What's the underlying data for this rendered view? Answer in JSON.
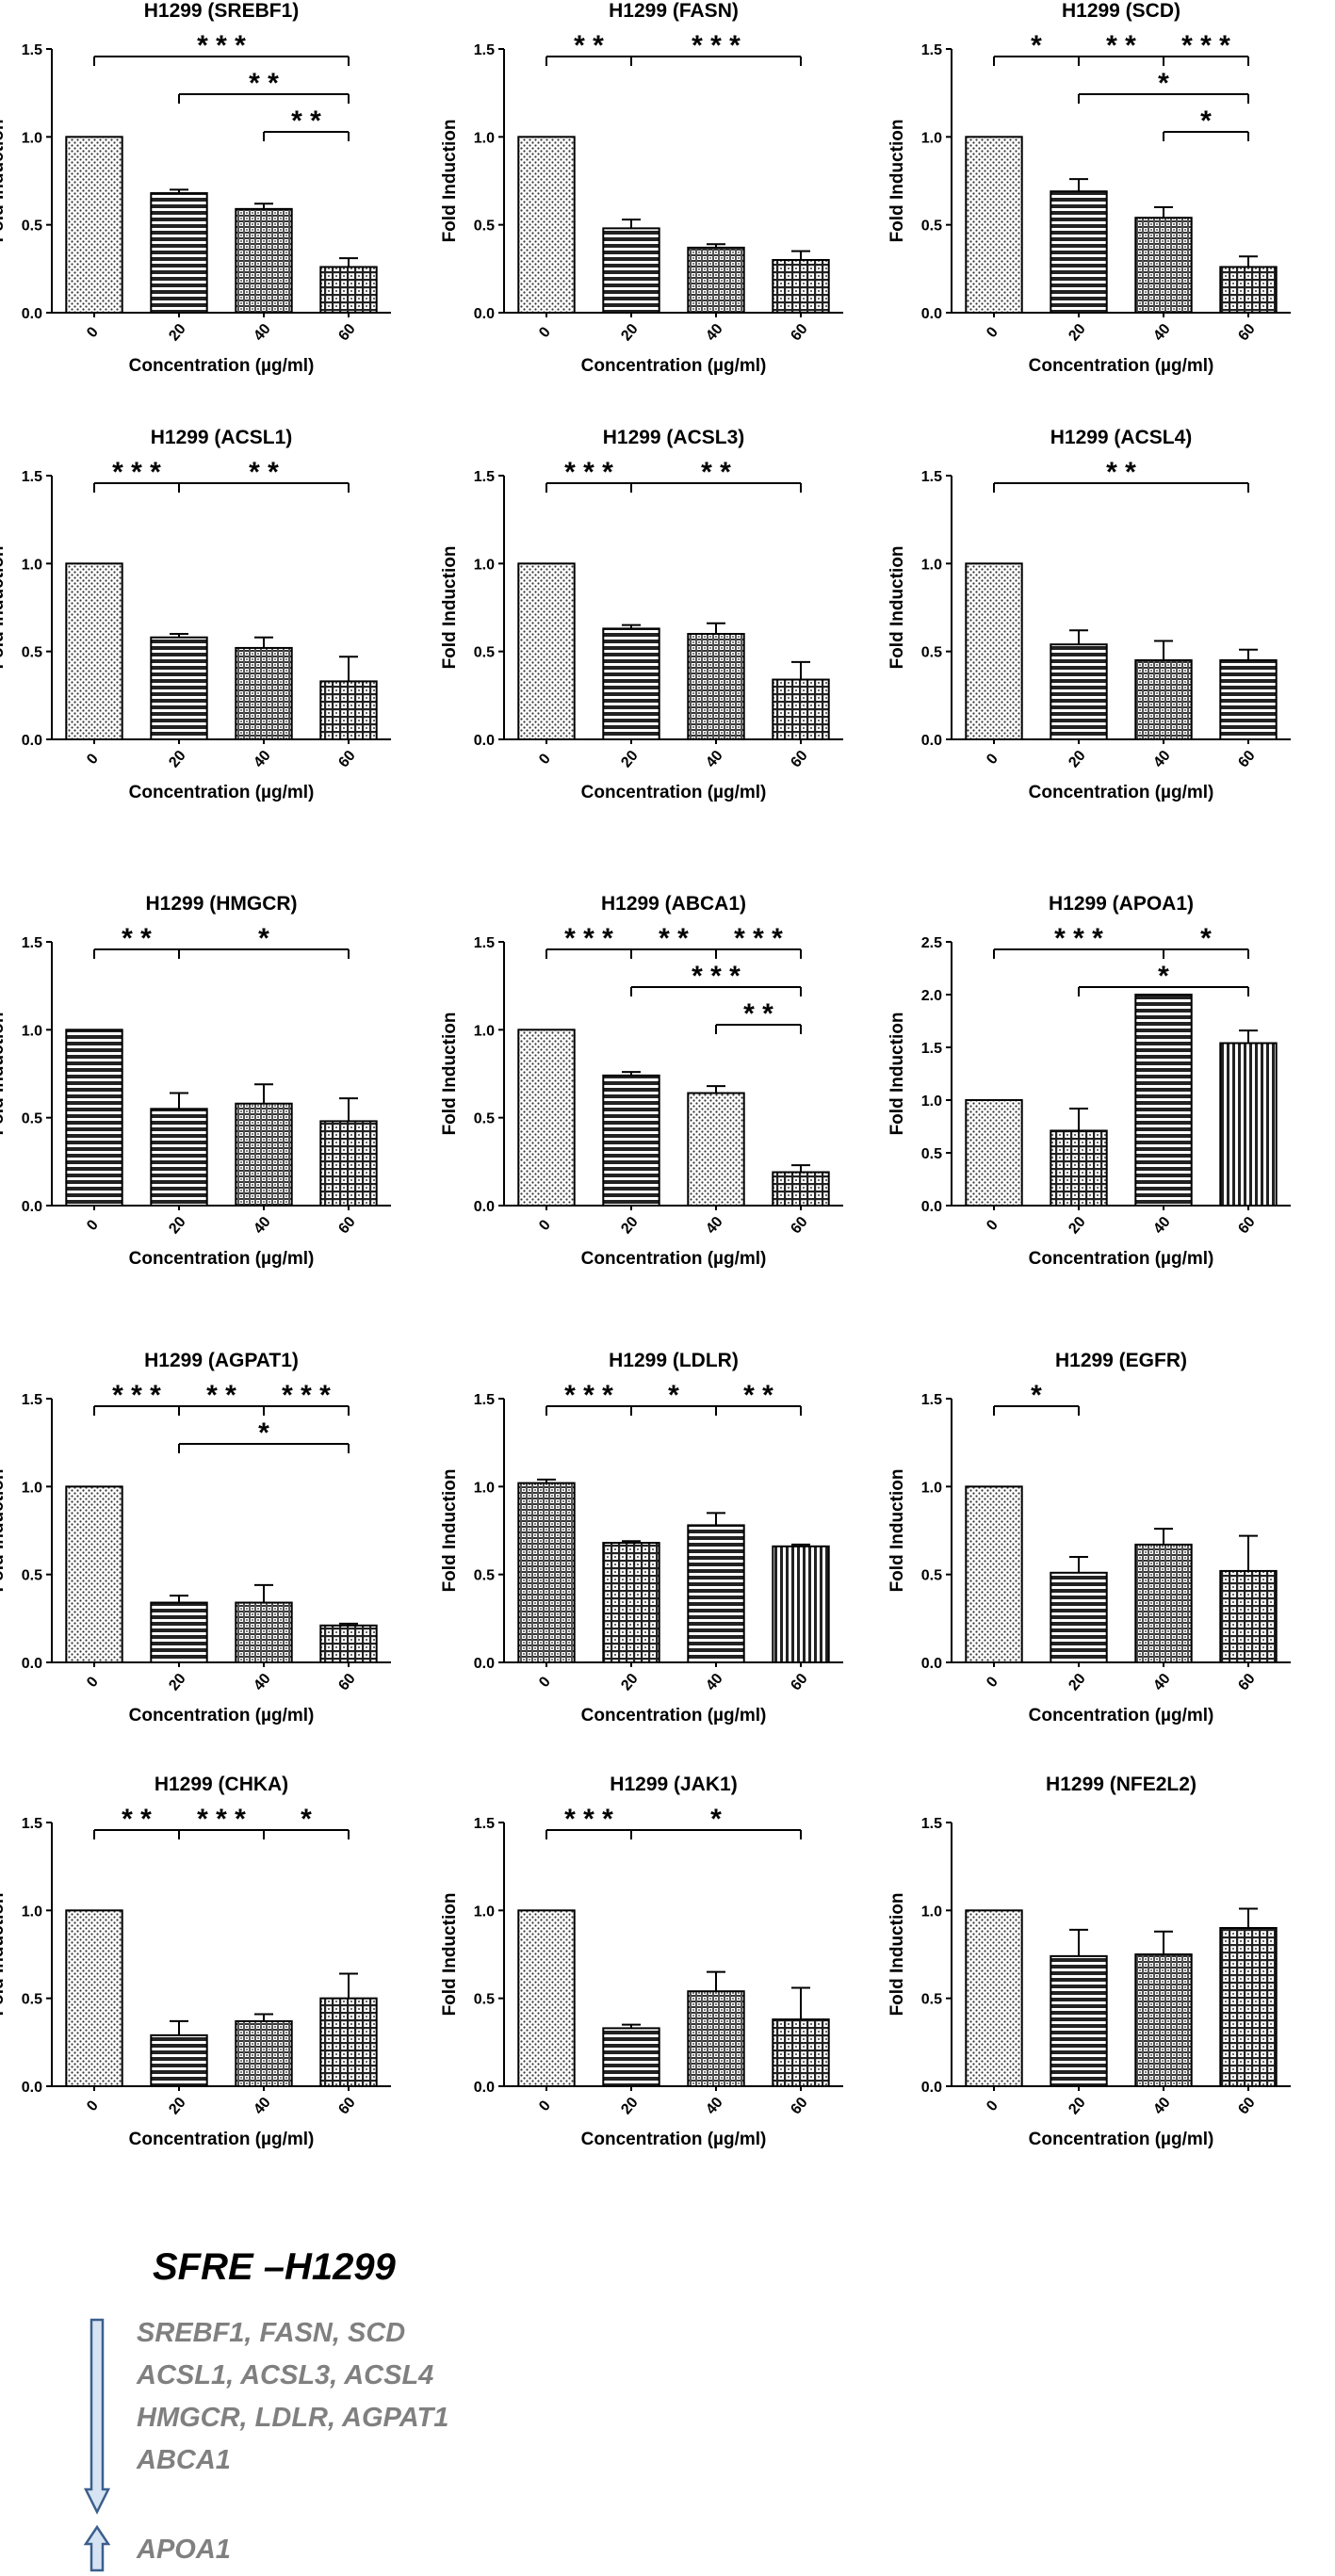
{
  "chart_data": [
    {
      "type": "bar",
      "title": "H1299  (SREBF1)",
      "xlabel": "Concentration (µg/ml)",
      "ylabel": "Fold Induction",
      "categories": [
        "0",
        "20",
        "40",
        "60"
      ],
      "values": [
        1.0,
        0.68,
        0.59,
        0.26
      ],
      "errors": [
        0.0,
        0.02,
        0.03,
        0.05
      ],
      "ylim": [
        0,
        1.5
      ],
      "yticks": [
        "0.0",
        "0.5",
        "1.0",
        "1.5"
      ],
      "patterns": [
        "dots",
        "hlines",
        "hatch",
        "check"
      ],
      "significance": [
        {
          "from": 0,
          "to": 3,
          "label": "* * *"
        },
        {
          "from": 1,
          "to": 3,
          "label": "* *"
        },
        {
          "from": 2,
          "to": 3,
          "label": "* *"
        }
      ]
    },
    {
      "type": "bar",
      "title": "H1299  (FASN)",
      "xlabel": "Concentration (µg/ml)",
      "ylabel": "Fold Induction",
      "categories": [
        "0",
        "20",
        "40",
        "60"
      ],
      "values": [
        1.0,
        0.48,
        0.37,
        0.3
      ],
      "errors": [
        0.0,
        0.05,
        0.02,
        0.05
      ],
      "ylim": [
        0,
        1.5
      ],
      "yticks": [
        "0.0",
        "0.5",
        "1.0",
        "1.5"
      ],
      "patterns": [
        "dots",
        "hlines",
        "hatch",
        "check"
      ],
      "significance": [
        {
          "from": 0,
          "to": 3,
          "mid": 1,
          "label": "* *",
          "label2": "* * *"
        }
      ]
    },
    {
      "type": "bar",
      "title": "H1299  (SCD)",
      "xlabel": "Concentration (µg/ml)",
      "ylabel": "Fold Induction",
      "categories": [
        "0",
        "20",
        "40",
        "60"
      ],
      "values": [
        1.0,
        0.69,
        0.54,
        0.26
      ],
      "errors": [
        0.0,
        0.07,
        0.06,
        0.06
      ],
      "ylim": [
        0,
        1.5
      ],
      "yticks": [
        "0.0",
        "0.5",
        "1.0",
        "1.5"
      ],
      "patterns": [
        "dots",
        "hlines",
        "hatch",
        "check"
      ],
      "significance": [
        {
          "from": 0,
          "to": 3,
          "mids": [
            1,
            2
          ],
          "labels": [
            "*",
            "* *",
            "* * *"
          ]
        },
        {
          "from": 1,
          "to": 3,
          "label": "*"
        },
        {
          "from": 2,
          "to": 3,
          "label": "*"
        }
      ]
    },
    {
      "type": "bar",
      "title": "H1299  (ACSL1)",
      "xlabel": "Concentration (µg/ml)",
      "ylabel": "Fold Induction",
      "categories": [
        "0",
        "20",
        "40",
        "60"
      ],
      "values": [
        1.0,
        0.58,
        0.52,
        0.33
      ],
      "errors": [
        0.0,
        0.02,
        0.06,
        0.14
      ],
      "ylim": [
        0,
        1.5
      ],
      "yticks": [
        "0.0",
        "0.5",
        "1.0",
        "1.5"
      ],
      "patterns": [
        "dots",
        "hlines",
        "hatch",
        "check"
      ],
      "significance": [
        {
          "from": 0,
          "to": 3,
          "mid": 1,
          "label": "* * *",
          "label2": "* *"
        }
      ]
    },
    {
      "type": "bar",
      "title": "H1299 (ACSL3)",
      "xlabel": "Concentration (µg/ml)",
      "ylabel": "Fold Induction",
      "categories": [
        "0",
        "20",
        "40",
        "60"
      ],
      "values": [
        1.0,
        0.63,
        0.6,
        0.34
      ],
      "errors": [
        0.0,
        0.02,
        0.06,
        0.1
      ],
      "ylim": [
        0,
        1.5
      ],
      "yticks": [
        "0.0",
        "0.5",
        "1.0",
        "1.5"
      ],
      "patterns": [
        "dots",
        "hlines",
        "hatch",
        "check"
      ],
      "significance": [
        {
          "from": 0,
          "to": 3,
          "mid": 1,
          "label": "* * *",
          "label2": "* *"
        }
      ]
    },
    {
      "type": "bar",
      "title": "H1299 (ACSL4)",
      "xlabel": "Concentration (µg/ml)",
      "ylabel": "Fold Induction",
      "categories": [
        "0",
        "20",
        "40",
        "60"
      ],
      "values": [
        1.0,
        0.54,
        0.45,
        0.45
      ],
      "errors": [
        0.0,
        0.08,
        0.11,
        0.06
      ],
      "ylim": [
        0,
        1.5
      ],
      "yticks": [
        "0.0",
        "0.5",
        "1.0",
        "1.5"
      ],
      "patterns": [
        "dots",
        "hlines",
        "hatch",
        "hlines"
      ],
      "significance": [
        {
          "from": 0,
          "to": 3,
          "label": "* *"
        }
      ]
    },
    {
      "type": "bar",
      "title": "H1299 (HMGCR)",
      "xlabel": "Concentration (µg/ml)",
      "ylabel": "Fold Induction",
      "categories": [
        "0",
        "20",
        "40",
        "60"
      ],
      "values": [
        1.0,
        0.55,
        0.58,
        0.48
      ],
      "errors": [
        0.0,
        0.09,
        0.11,
        0.13
      ],
      "ylim": [
        0,
        1.5
      ],
      "yticks": [
        "0.0",
        "0.5",
        "1.0",
        "1.5"
      ],
      "patterns": [
        "hlines",
        "hlines",
        "hatch",
        "check"
      ],
      "significance": [
        {
          "from": 0,
          "to": 3,
          "mid": 1,
          "label": "* *",
          "label2": "*"
        }
      ]
    },
    {
      "type": "bar",
      "title": "H1299  (ABCA1)",
      "xlabel": "Concentration (µg/ml)",
      "ylabel": "Fold Induction",
      "categories": [
        "0",
        "20",
        "40",
        "60"
      ],
      "values": [
        1.0,
        0.74,
        0.64,
        0.19
      ],
      "errors": [
        0.0,
        0.02,
        0.04,
        0.04
      ],
      "ylim": [
        0,
        1.5
      ],
      "yticks": [
        "0.0",
        "0.5",
        "1.0",
        "1.5"
      ],
      "patterns": [
        "dots",
        "hlines",
        "dots",
        "check"
      ],
      "significance": [
        {
          "from": 0,
          "to": 3,
          "mids": [
            1,
            2
          ],
          "labels": [
            "* * *",
            "* *",
            "* * *"
          ]
        },
        {
          "from": 1,
          "to": 3,
          "label": "* * *"
        },
        {
          "from": 2,
          "to": 3,
          "label": "* *"
        }
      ]
    },
    {
      "type": "bar",
      "title": "H1299 (APOA1)",
      "xlabel": "Concentration (µg/ml)",
      "ylabel": "Fold Induction",
      "categories": [
        "0",
        "20",
        "40",
        "60"
      ],
      "values": [
        1.0,
        0.71,
        2.0,
        1.54
      ],
      "errors": [
        0.0,
        0.21,
        0.0,
        0.12
      ],
      "ylim": [
        0,
        2.5
      ],
      "yticks": [
        "0.0",
        "0.5",
        "1.0",
        "1.5",
        "2.0",
        "2.5"
      ],
      "patterns": [
        "dots",
        "check",
        "hlines",
        "vlines"
      ],
      "significance": [
        {
          "from": 0,
          "to": 3,
          "mid": 2,
          "label": "* * *",
          "label2": "*"
        },
        {
          "from": 1,
          "to": 3,
          "label": "*"
        }
      ]
    },
    {
      "type": "bar",
      "title": "H1299 (AGPAT1)",
      "xlabel": "Concentration (µg/ml)",
      "ylabel": "Fold Induction",
      "categories": [
        "0",
        "20",
        "40",
        "60"
      ],
      "values": [
        1.0,
        0.34,
        0.34,
        0.21
      ],
      "errors": [
        0.0,
        0.04,
        0.1,
        0.01
      ],
      "ylim": [
        0,
        1.5
      ],
      "yticks": [
        "0.0",
        "0.5",
        "1.0",
        "1.5"
      ],
      "patterns": [
        "dots",
        "hlines",
        "hatch",
        "check"
      ],
      "significance": [
        {
          "from": 0,
          "to": 3,
          "mids": [
            1,
            2
          ],
          "labels": [
            "* * *",
            "* *",
            "* * *"
          ]
        },
        {
          "from": 1,
          "to": 3,
          "label": "*"
        }
      ]
    },
    {
      "type": "bar",
      "title": "H1299 (LDLR)",
      "xlabel": "Concentration (µg/ml)",
      "ylabel": "Fold Induction",
      "categories": [
        "0",
        "20",
        "40",
        "60"
      ],
      "values": [
        1.02,
        0.68,
        0.78,
        0.66
      ],
      "errors": [
        0.02,
        0.01,
        0.07,
        0.01
      ],
      "ylim": [
        0,
        1.5
      ],
      "yticks": [
        "0.0",
        "0.5",
        "1.0",
        "1.5"
      ],
      "patterns": [
        "hatch",
        "check",
        "hlines",
        "vlines"
      ],
      "significance": [
        {
          "from": 0,
          "to": 3,
          "mids": [
            1,
            2
          ],
          "labels": [
            "* * *",
            "*",
            "* *"
          ]
        }
      ]
    },
    {
      "type": "bar",
      "title": "H1299 (EGFR)",
      "xlabel": "Concentration (µg/ml)",
      "ylabel": "Fold Induction",
      "categories": [
        "0",
        "20",
        "40",
        "60"
      ],
      "values": [
        1.0,
        0.51,
        0.67,
        0.52
      ],
      "errors": [
        0.0,
        0.09,
        0.09,
        0.2
      ],
      "ylim": [
        0,
        1.5
      ],
      "yticks": [
        "0.0",
        "0.5",
        "1.0",
        "1.5"
      ],
      "patterns": [
        "dots",
        "hlines",
        "hatch",
        "check"
      ],
      "significance": [
        {
          "from": 0,
          "to": 1,
          "label": "*"
        }
      ]
    },
    {
      "type": "bar",
      "title": "H1299 (CHKA)",
      "xlabel": "Concentration (µg/ml)",
      "ylabel": "Fold Induction",
      "categories": [
        "0",
        "20",
        "40",
        "60"
      ],
      "values": [
        1.0,
        0.29,
        0.37,
        0.5
      ],
      "errors": [
        0.0,
        0.08,
        0.04,
        0.14
      ],
      "ylim": [
        0,
        1.5
      ],
      "yticks": [
        "0.0",
        "0.5",
        "1.0",
        "1.5"
      ],
      "patterns": [
        "dots",
        "hlines",
        "hatch",
        "check"
      ],
      "significance": [
        {
          "from": 0,
          "to": 3,
          "mids": [
            1,
            2
          ],
          "labels": [
            "* *",
            "* * *",
            "*"
          ]
        }
      ]
    },
    {
      "type": "bar",
      "title": "H1299 (JAK1)",
      "xlabel": "Concentration (µg/ml)",
      "ylabel": "Fold Induction",
      "categories": [
        "0",
        "20",
        "40",
        "60"
      ],
      "values": [
        1.0,
        0.33,
        0.54,
        0.38
      ],
      "errors": [
        0.0,
        0.02,
        0.11,
        0.18
      ],
      "ylim": [
        0,
        1.5
      ],
      "yticks": [
        "0.0",
        "0.5",
        "1.0",
        "1.5"
      ],
      "patterns": [
        "dots",
        "hlines",
        "hatch",
        "check"
      ],
      "significance": [
        {
          "from": 0,
          "to": 3,
          "mid": 1,
          "label": "* * *",
          "label2": "*"
        }
      ]
    },
    {
      "type": "bar",
      "title": "H1299 (NFE2L2)",
      "xlabel": "Concentration (µg/ml)",
      "ylabel": "Fold Induction",
      "categories": [
        "0",
        "20",
        "40",
        "60"
      ],
      "values": [
        1.0,
        0.74,
        0.75,
        0.9
      ],
      "errors": [
        0.0,
        0.15,
        0.13,
        0.11
      ],
      "ylim": [
        0,
        1.5
      ],
      "yticks": [
        "0.0",
        "0.5",
        "1.0",
        "1.5"
      ],
      "patterns": [
        "dots",
        "hlines",
        "hatch",
        "check"
      ],
      "significance": []
    }
  ],
  "summary": {
    "title": "SFRE –H1299",
    "down_lines": [
      "SREBF1, FASN, SCD",
      "ACSL1, ACSL3, ACSL4",
      "HMGCR, LDLR, AGPAT1",
      "ABCA1"
    ],
    "up_lines": [
      "APOA1"
    ],
    "down_arrow_icon": "down-arrow-icon",
    "up_arrow_icon": "up-arrow-icon"
  }
}
